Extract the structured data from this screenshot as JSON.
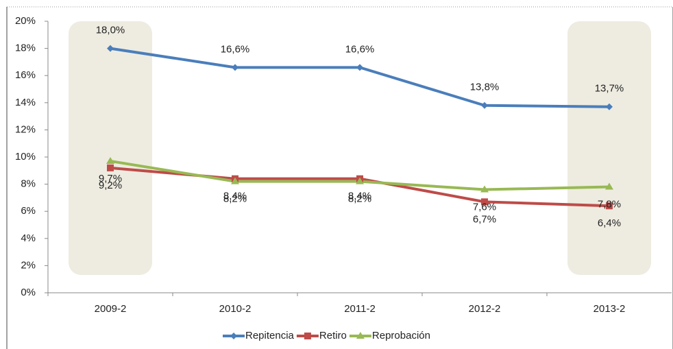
{
  "chart_data": {
    "type": "line",
    "categories": [
      "2009-2",
      "2010-2",
      "2011-2",
      "2012-2",
      "2013-2"
    ],
    "series": [
      {
        "name": "Repitencia",
        "color": "#4a7ebb",
        "values": [
          18.0,
          16.6,
          16.6,
          13.8,
          13.7
        ],
        "value_labels": [
          "18,0%",
          "16,6%",
          "16,6%",
          "13,8%",
          "13,7%"
        ]
      },
      {
        "name": "Retiro",
        "color": "#be4b48",
        "values": [
          9.2,
          8.4,
          8.4,
          6.7,
          6.4
        ],
        "value_labels": [
          "9,2%",
          "8,4%",
          "8,4%",
          "6,7%",
          "6,4%"
        ]
      },
      {
        "name": "Reprobación",
        "color": "#98b954",
        "values": [
          9.7,
          8.2,
          8.2,
          7.6,
          7.8
        ],
        "value_labels": [
          "9,7%",
          "8,2%",
          "8,2%",
          "7,6%",
          "7,8%"
        ]
      }
    ],
    "ylim": [
      0,
      20
    ],
    "yticks": [
      {
        "value": 0,
        "label": "0%"
      },
      {
        "value": 2,
        "label": "2%"
      },
      {
        "value": 4,
        "label": "4%"
      },
      {
        "value": 6,
        "label": "6%"
      },
      {
        "value": 8,
        "label": "8%"
      },
      {
        "value": 10,
        "label": "10%"
      },
      {
        "value": 12,
        "label": "12%"
      },
      {
        "value": 14,
        "label": "14%"
      },
      {
        "value": 16,
        "label": "16%"
      },
      {
        "value": 18,
        "label": "18%"
      },
      {
        "value": 20,
        "label": "20%"
      }
    ],
    "legend": "bottom"
  }
}
